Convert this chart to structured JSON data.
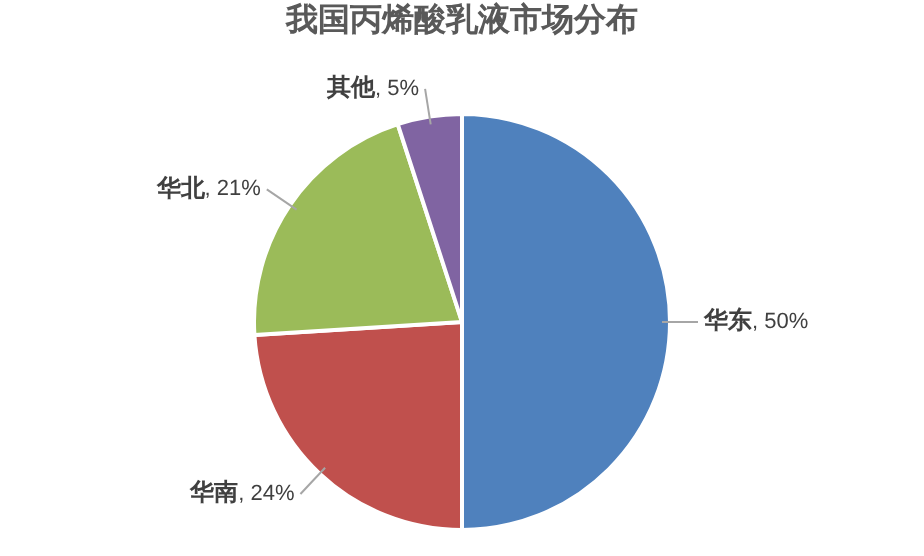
{
  "chart_data": {
    "type": "pie",
    "title": "我国丙烯酸乳液市场分布",
    "categories": [
      "华东",
      "华南",
      "华北",
      "其他"
    ],
    "values": [
      50,
      24,
      21,
      5
    ],
    "colors": [
      "#4f81bd",
      "#c0504d",
      "#9bbb59",
      "#8064a2"
    ],
    "value_labels": [
      ", 50%",
      ", 24%",
      ", 21%",
      ", 5%"
    ],
    "legend": false
  }
}
